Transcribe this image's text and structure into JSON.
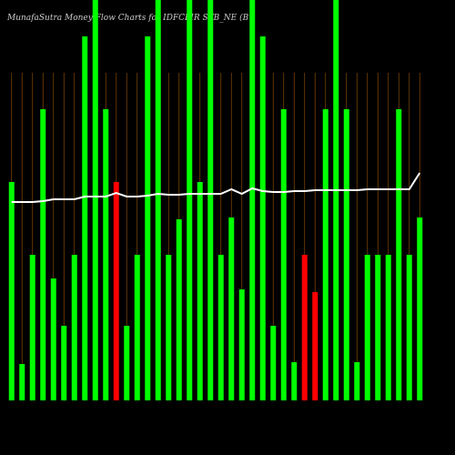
{
  "chart_data": {
    "type": "bar",
    "title": "MunafaSutra  Money Flow  Charts for IDFCFIR          STB_NE          (B",
    "ylim": [
      0,
      440
    ],
    "categories": [
      null,
      null,
      null,
      null,
      null,
      null,
      null,
      null,
      null,
      null,
      null,
      null,
      null,
      null,
      null,
      null,
      null,
      null,
      null,
      null,
      null,
      null,
      null,
      null,
      null,
      null,
      null,
      null,
      null,
      null,
      null,
      null,
      null,
      null,
      null,
      null,
      null,
      null,
      null,
      null
    ],
    "series": [
      {
        "type": "bar",
        "values": [
          240,
          40,
          160,
          320,
          134,
          82,
          160,
          400,
          440,
          320,
          240,
          82,
          160,
          400,
          440,
          160,
          199,
          440,
          240,
          440,
          160,
          201,
          122,
          440,
          400,
          82,
          320,
          42,
          160,
          119,
          320,
          440,
          320,
          42,
          160,
          160,
          160,
          320,
          160,
          201
        ],
        "colors": [
          "#00ff00",
          "#00ff00",
          "#00ff00",
          "#00ff00",
          "#00ff00",
          "#00ff00",
          "#00ff00",
          "#00ff00",
          "#00ff00",
          "#00ff00",
          "#ff0000",
          "#00ff00",
          "#00ff00",
          "#00ff00",
          "#00ff00",
          "#00ff00",
          "#00ff00",
          "#00ff00",
          "#00ff00",
          "#00ff00",
          "#00ff00",
          "#00ff00",
          "#00ff00",
          "#00ff00",
          "#00ff00",
          "#00ff00",
          "#00ff00",
          "#00ff00",
          "#ff0000",
          "#ff0000",
          "#00ff00",
          "#00ff00",
          "#00ff00",
          "#00ff00",
          "#00ff00",
          "#00ff00",
          "#00ff00",
          "#00ff00",
          "#00ff00",
          "#00ff00"
        ]
      },
      {
        "type": "line",
        "color": "#ffffff",
        "values": [
          218,
          218,
          218,
          219,
          221,
          221,
          221,
          224,
          224,
          224,
          228,
          224,
          224,
          225,
          227,
          226,
          226,
          227,
          227,
          227,
          227,
          232,
          227,
          233,
          230,
          229,
          229,
          230,
          230,
          231,
          231,
          231,
          231,
          231,
          232,
          232,
          232,
          232,
          232,
          250
        ]
      }
    ]
  }
}
